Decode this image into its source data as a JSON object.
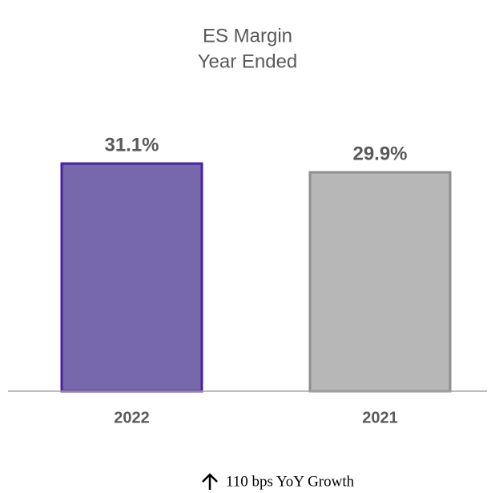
{
  "chart_data": {
    "type": "bar",
    "title": [
      "ES Margin",
      "Year Ended"
    ],
    "categories": [
      "2022",
      "2021"
    ],
    "values": [
      31.1,
      29.9
    ],
    "value_labels": [
      "31.1%",
      "29.9%"
    ],
    "colors": [
      "#7768ab",
      "#b7b7b7"
    ],
    "edge_colors": [
      "#4a1fa6",
      "#8f8f8f"
    ],
    "annotation": "110 bps YoY Growth"
  }
}
